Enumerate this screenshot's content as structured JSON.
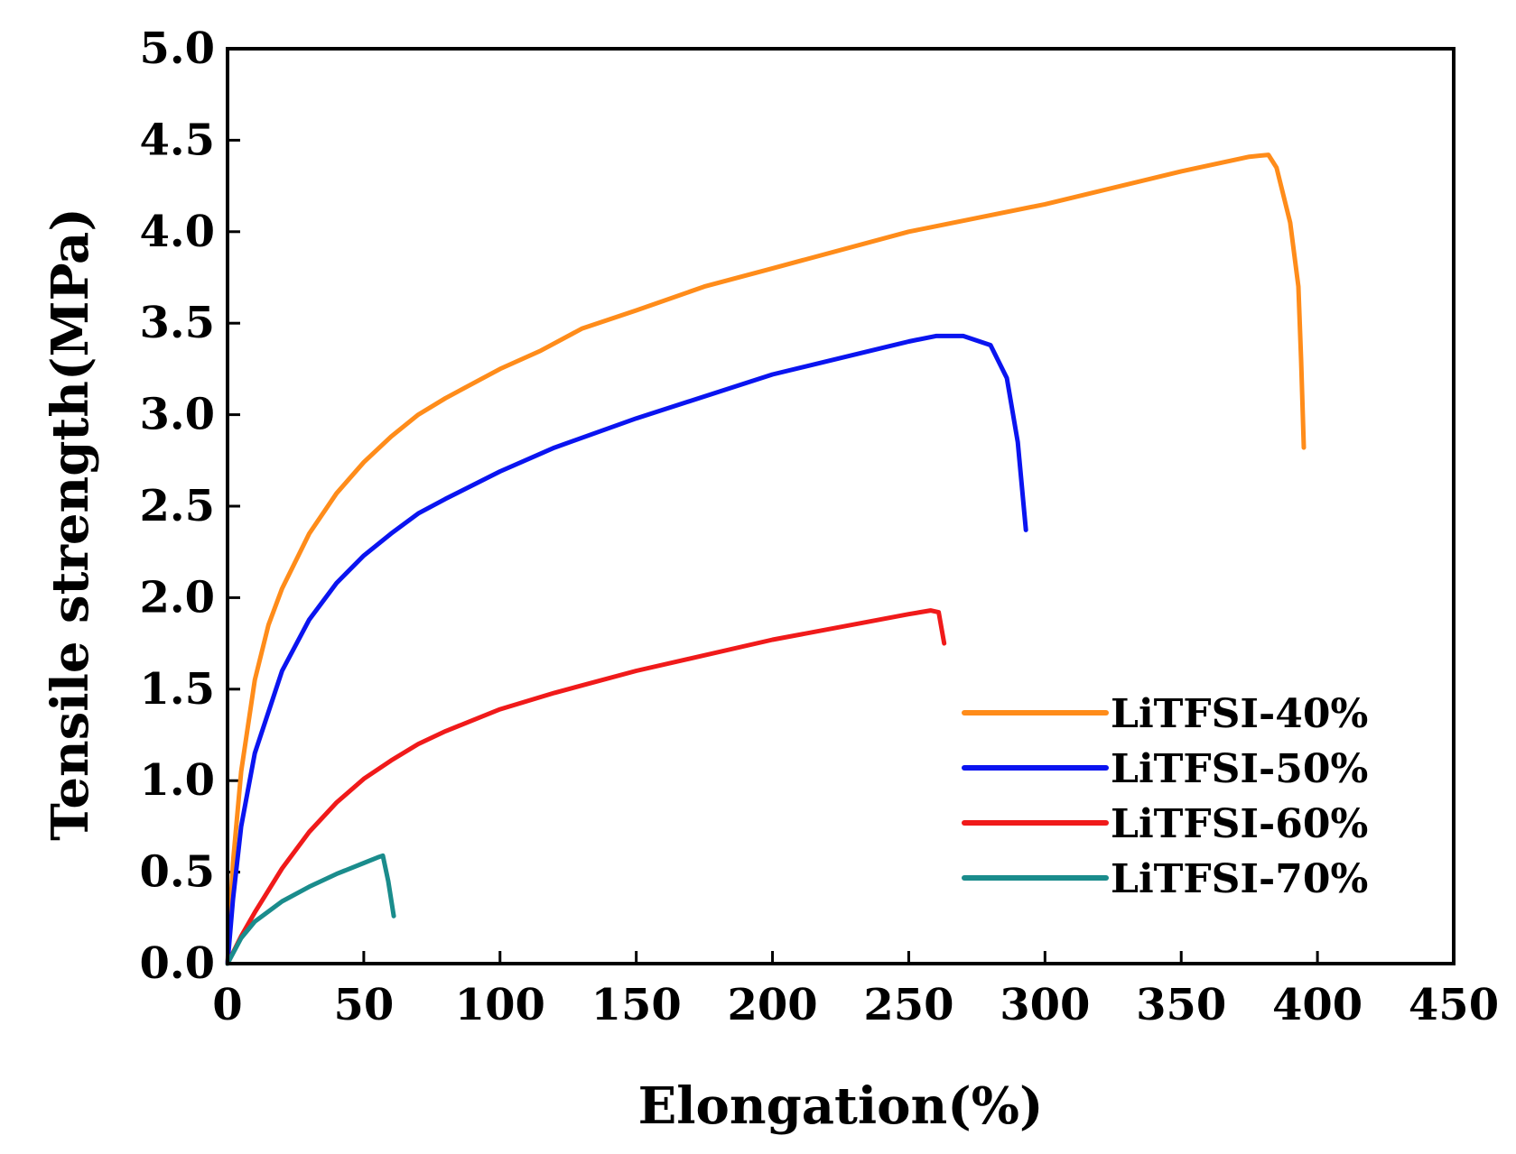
{
  "chart_data": {
    "type": "line",
    "title": "",
    "xlabel": "Elongation(%)",
    "ylabel": "Tensile strength(MPa)",
    "xlim": [
      0,
      450
    ],
    "ylim": [
      0,
      5.0
    ],
    "xticks": [
      "0",
      "50",
      "100",
      "150",
      "200",
      "250",
      "300",
      "350",
      "400",
      "450"
    ],
    "yticks": [
      "0.0",
      "0.5",
      "1.0",
      "1.5",
      "2.0",
      "2.5",
      "3.0",
      "3.5",
      "4.0",
      "4.5",
      "5.0"
    ],
    "grid": false,
    "legend_position": "bottom-right",
    "series": [
      {
        "name": "LiTFSI-40%",
        "color": "#FF8C1A",
        "x": [
          0,
          2,
          5,
          10,
          15,
          20,
          30,
          40,
          50,
          60,
          70,
          80,
          100,
          115,
          130,
          150,
          175,
          200,
          250,
          300,
          350,
          375,
          382,
          385,
          390,
          393,
          394,
          395
        ],
        "y": [
          0,
          0.55,
          1.05,
          1.55,
          1.85,
          2.05,
          2.35,
          2.57,
          2.74,
          2.88,
          3.0,
          3.09,
          3.25,
          3.35,
          3.47,
          3.57,
          3.7,
          3.8,
          4.0,
          4.15,
          4.33,
          4.41,
          4.42,
          4.35,
          4.05,
          3.7,
          3.3,
          2.82
        ]
      },
      {
        "name": "LiTFSI-50%",
        "color": "#0A14F0",
        "x": [
          0,
          2,
          5,
          10,
          20,
          30,
          40,
          50,
          60,
          70,
          80,
          100,
          120,
          150,
          200,
          250,
          260,
          270,
          280,
          286,
          290,
          293
        ],
        "y": [
          0,
          0.35,
          0.75,
          1.15,
          1.6,
          1.88,
          2.08,
          2.23,
          2.35,
          2.46,
          2.54,
          2.69,
          2.82,
          2.98,
          3.22,
          3.4,
          3.43,
          3.43,
          3.38,
          3.2,
          2.85,
          2.37
        ]
      },
      {
        "name": "LiTFSI-60%",
        "color": "#F01A1A",
        "x": [
          0,
          5,
          10,
          20,
          30,
          40,
          50,
          60,
          70,
          80,
          100,
          120,
          150,
          200,
          250,
          258,
          261,
          263
        ],
        "y": [
          0,
          0.15,
          0.28,
          0.52,
          0.72,
          0.88,
          1.01,
          1.11,
          1.2,
          1.27,
          1.39,
          1.48,
          1.6,
          1.77,
          1.91,
          1.93,
          1.92,
          1.75
        ]
      },
      {
        "name": "LiTFSI-70%",
        "color": "#1A8C8C",
        "x": [
          0,
          5,
          10,
          20,
          30,
          40,
          50,
          55,
          57,
          59,
          61
        ],
        "y": [
          0,
          0.14,
          0.23,
          0.34,
          0.42,
          0.49,
          0.55,
          0.58,
          0.59,
          0.45,
          0.26
        ]
      }
    ]
  }
}
